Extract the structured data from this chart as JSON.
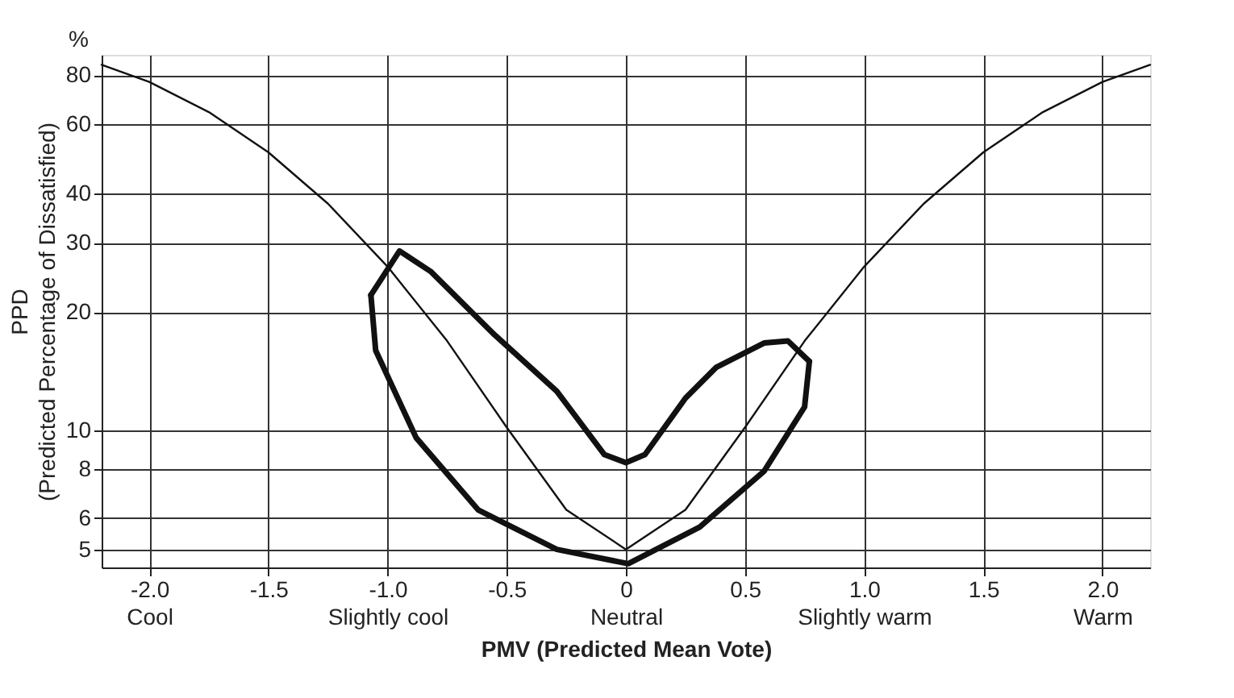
{
  "chart_data": {
    "type": "line",
    "xlabel": "PMV (Predicted Mean Vote)",
    "ylabel": "PPD\n(Predicted Percentage of Dissatisfied)",
    "annotations": [
      "%"
    ],
    "series": [
      {
        "color": "#111111",
        "x": [
          -2.2,
          -2.0,
          -1.75,
          -1.5,
          -1.25,
          -1.0,
          -0.75,
          -0.5,
          -0.25,
          0,
          0.25,
          0.5,
          0.75,
          1.0,
          1.25,
          1.5,
          1.75,
          2.0,
          2.2
        ],
        "values": [
          84.9,
          76.8,
          64.4,
          50.9,
          37.7,
          26.1,
          16.9,
          10.2,
          6.3,
          5.0,
          6.3,
          10.2,
          16.9,
          26.1,
          37.7,
          50.9,
          64.4,
          76.8,
          84.9
        ]
      },
      {
        "color": "#111111",
        "x": [
          -1.07,
          -0.95,
          -0.82,
          -0.55,
          -0.29,
          -0.09,
          0,
          0.08,
          0.25,
          0.38,
          0.58,
          0.68,
          0.77
        ],
        "values": [
          22.1,
          28.6,
          25.4,
          17.5,
          12.6,
          8.7,
          8.3,
          8.7,
          12.1,
          14.5,
          16.7,
          16.9,
          15.0
        ]
      },
      {
        "color": "#111111",
        "x": [
          -1.07,
          -1.05,
          -0.88,
          -0.62,
          -0.29,
          0.01,
          0.31,
          0.58,
          0.75,
          0.77
        ],
        "values": [
          22.1,
          16.0,
          9.6,
          6.3,
          5.0,
          4.6,
          5.7,
          7.9,
          11.5,
          15.0
        ]
      }
    ],
    "log": "y",
    "xlim": [
      -2.2,
      2.2
    ],
    "xticks": [
      {
        "value": -2.0,
        "label": "-2.0\nCool"
      },
      {
        "value": -1.5,
        "label": "-1.5"
      },
      {
        "value": -1.0,
        "label": "-1.0\nSlightly cool"
      },
      {
        "value": -0.5,
        "label": "-0.5"
      },
      {
        "value": 0,
        "label": "0\nNeutral"
      },
      {
        "value": 0.5,
        "label": "0.5"
      },
      {
        "value": 1.0,
        "label": "1.0\nSlightly warm"
      },
      {
        "value": 1.5,
        "label": "1.5"
      },
      {
        "value": 2.0,
        "label": "2.0\nWarm"
      }
    ],
    "ylim": [
      4.5,
      90
    ],
    "yticks": [
      5,
      6,
      8,
      10,
      20,
      30,
      40,
      60,
      80
    ],
    "grid": true,
    "marker": "none",
    "line_style": "solid"
  }
}
